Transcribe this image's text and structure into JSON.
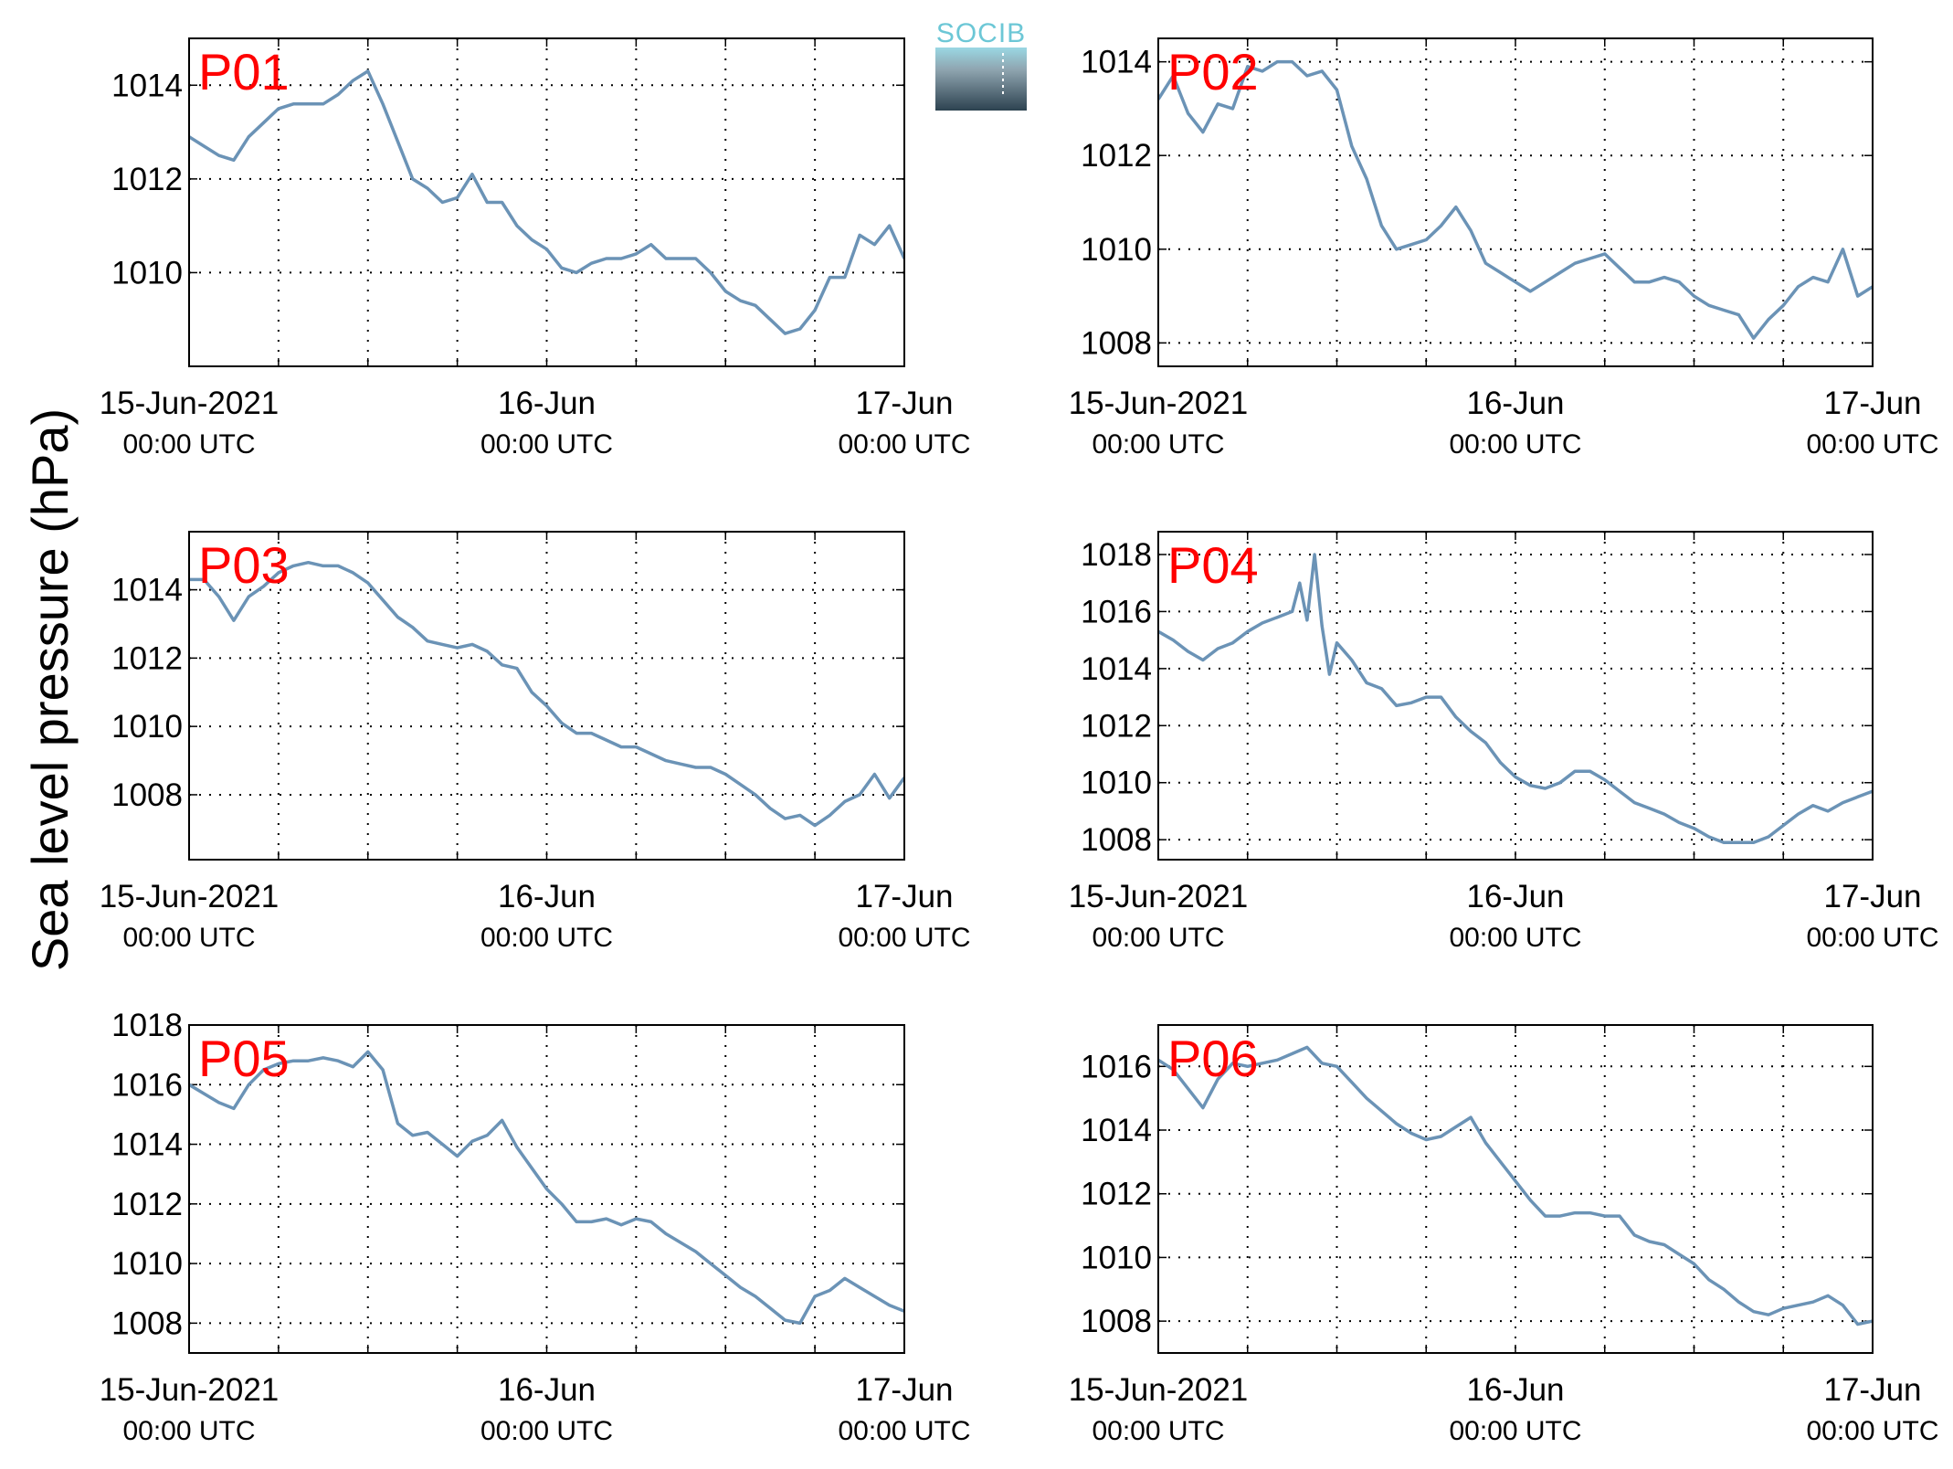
{
  "figure": {
    "ylabel": "Sea level pressure (hPa)",
    "logo_text": "SOCIB",
    "line_color": "#6b93b6",
    "panel_label_color": "#ff0000"
  },
  "chart_data": [
    {
      "type": "line",
      "label": "P01",
      "xlim": [
        0,
        48
      ],
      "ylim": [
        1008,
        1015
      ],
      "yticks": [
        1010,
        1012,
        1014
      ],
      "xticks": [
        {
          "x": 0,
          "main": "15-Jun-2021",
          "sub": "00:00 UTC"
        },
        {
          "x": 24,
          "main": "16-Jun",
          "sub": "00:00 UTC"
        },
        {
          "x": 48,
          "main": "17-Jun",
          "sub": "00:00 UTC"
        }
      ],
      "minor_xticks": [
        6,
        12,
        18,
        30,
        36,
        42
      ],
      "x": [
        0,
        1,
        2,
        3,
        4,
        5,
        6,
        7,
        8,
        9,
        10,
        11,
        12,
        13,
        14,
        15,
        16,
        17,
        18,
        19,
        20,
        21,
        22,
        23,
        24,
        25,
        26,
        27,
        28,
        29,
        30,
        31,
        32,
        33,
        34,
        35,
        36,
        37,
        38,
        39,
        40,
        41,
        42,
        43,
        44,
        45,
        46,
        47,
        48
      ],
      "y": [
        1012.9,
        1012.7,
        1012.5,
        1012.4,
        1012.9,
        1013.2,
        1013.5,
        1013.6,
        1013.6,
        1013.6,
        1013.8,
        1014.1,
        1014.3,
        1013.6,
        1012.8,
        1012.0,
        1011.8,
        1011.5,
        1011.6,
        1012.1,
        1011.5,
        1011.5,
        1011.0,
        1010.7,
        1010.5,
        1010.1,
        1010.0,
        1010.2,
        1010.3,
        1010.3,
        1010.4,
        1010.6,
        1010.3,
        1010.3,
        1010.3,
        1010.0,
        1009.6,
        1009.4,
        1009.3,
        1009.0,
        1008.7,
        1008.8,
        1009.2,
        1009.9,
        1009.9,
        1010.8,
        1010.6,
        1011.0,
        1010.3
      ]
    },
    {
      "type": "line",
      "label": "P02",
      "xlim": [
        0,
        48
      ],
      "ylim": [
        1007.5,
        1014.5
      ],
      "yticks": [
        1008,
        1010,
        1012,
        1014
      ],
      "xticks": [
        {
          "x": 0,
          "main": "15-Jun-2021",
          "sub": "00:00 UTC"
        },
        {
          "x": 24,
          "main": "16-Jun",
          "sub": "00:00 UTC"
        },
        {
          "x": 48,
          "main": "17-Jun",
          "sub": "00:00 UTC"
        }
      ],
      "minor_xticks": [
        6,
        12,
        18,
        30,
        36,
        42
      ],
      "x": [
        0,
        1,
        2,
        3,
        4,
        5,
        6,
        7,
        8,
        9,
        10,
        11,
        12,
        13,
        14,
        15,
        16,
        17,
        18,
        19,
        20,
        21,
        22,
        23,
        24,
        25,
        26,
        27,
        28,
        29,
        30,
        31,
        32,
        33,
        34,
        35,
        36,
        37,
        38,
        39,
        40,
        41,
        42,
        43,
        44,
        45,
        46,
        47,
        48
      ],
      "y": [
        1013.2,
        1013.7,
        1012.9,
        1012.5,
        1013.1,
        1013.0,
        1013.9,
        1013.8,
        1014.0,
        1014.0,
        1013.7,
        1013.8,
        1013.4,
        1012.2,
        1011.5,
        1010.5,
        1010.0,
        1010.1,
        1010.2,
        1010.5,
        1010.9,
        1010.4,
        1009.7,
        1009.5,
        1009.3,
        1009.1,
        1009.3,
        1009.5,
        1009.7,
        1009.8,
        1009.9,
        1009.6,
        1009.3,
        1009.3,
        1009.4,
        1009.3,
        1009.0,
        1008.8,
        1008.7,
        1008.6,
        1008.1,
        1008.5,
        1008.8,
        1009.2,
        1009.4,
        1009.3,
        1010.0,
        1009.0,
        1009.2
      ]
    },
    {
      "type": "line",
      "label": "P03",
      "xlim": [
        0,
        48
      ],
      "ylim": [
        1006.1,
        1015.7
      ],
      "yticks": [
        1008,
        1010,
        1012,
        1014
      ],
      "xticks": [
        {
          "x": 0,
          "main": "15-Jun-2021",
          "sub": "00:00 UTC"
        },
        {
          "x": 24,
          "main": "16-Jun",
          "sub": "00:00 UTC"
        },
        {
          "x": 48,
          "main": "17-Jun",
          "sub": "00:00 UTC"
        }
      ],
      "minor_xticks": [
        6,
        12,
        18,
        30,
        36,
        42
      ],
      "x": [
        0,
        1,
        2,
        3,
        4,
        5,
        6,
        7,
        8,
        9,
        10,
        11,
        12,
        13,
        14,
        15,
        16,
        17,
        18,
        19,
        20,
        21,
        22,
        23,
        24,
        25,
        26,
        27,
        28,
        29,
        30,
        31,
        32,
        33,
        34,
        35,
        36,
        37,
        38,
        39,
        40,
        41,
        42,
        43,
        44,
        45,
        46,
        47,
        48
      ],
      "y": [
        1014.3,
        1014.3,
        1013.8,
        1013.1,
        1013.8,
        1014.1,
        1014.5,
        1014.7,
        1014.8,
        1014.7,
        1014.7,
        1014.5,
        1014.2,
        1013.7,
        1013.2,
        1012.9,
        1012.5,
        1012.4,
        1012.3,
        1012.4,
        1012.2,
        1011.8,
        1011.7,
        1011.0,
        1010.6,
        1010.1,
        1009.8,
        1009.8,
        1009.6,
        1009.4,
        1009.4,
        1009.2,
        1009.0,
        1008.9,
        1008.8,
        1008.8,
        1008.6,
        1008.3,
        1008.0,
        1007.6,
        1007.3,
        1007.4,
        1007.1,
        1007.4,
        1007.8,
        1008.0,
        1008.6,
        1007.9,
        1008.5
      ]
    },
    {
      "type": "line",
      "label": "P04",
      "xlim": [
        0,
        48
      ],
      "ylim": [
        1007.3,
        1018.8
      ],
      "yticks": [
        1008,
        1010,
        1012,
        1014,
        1016,
        1018
      ],
      "xticks": [
        {
          "x": 0,
          "main": "15-Jun-2021",
          "sub": "00:00 UTC"
        },
        {
          "x": 24,
          "main": "16-Jun",
          "sub": "00:00 UTC"
        },
        {
          "x": 48,
          "main": "17-Jun",
          "sub": "00:00 UTC"
        }
      ],
      "minor_xticks": [
        6,
        12,
        18,
        30,
        36,
        42
      ],
      "x": [
        0,
        1,
        2,
        3,
        4,
        5,
        6,
        7,
        8,
        9,
        9.5,
        10,
        10.5,
        11,
        11.5,
        12,
        13,
        14,
        15,
        16,
        17,
        18,
        19,
        20,
        21,
        22,
        23,
        24,
        25,
        26,
        27,
        28,
        29,
        30,
        31,
        32,
        33,
        34,
        35,
        36,
        37,
        38,
        39,
        40,
        41,
        42,
        43,
        44,
        45,
        46,
        47,
        48
      ],
      "y": [
        1015.3,
        1015.0,
        1014.6,
        1014.3,
        1014.7,
        1014.9,
        1015.3,
        1015.6,
        1015.8,
        1016.0,
        1017.0,
        1015.7,
        1018.0,
        1015.5,
        1013.8,
        1014.9,
        1014.3,
        1013.5,
        1013.3,
        1012.7,
        1012.8,
        1013.0,
        1013.0,
        1012.3,
        1011.8,
        1011.4,
        1010.7,
        1010.2,
        1009.9,
        1009.8,
        1010.0,
        1010.4,
        1010.4,
        1010.1,
        1009.7,
        1009.3,
        1009.1,
        1008.9,
        1008.6,
        1008.4,
        1008.1,
        1007.9,
        1007.9,
        1007.9,
        1008.1,
        1008.5,
        1008.9,
        1009.2,
        1009.0,
        1009.3,
        1009.5,
        1009.7
      ]
    },
    {
      "type": "line",
      "label": "P05",
      "xlim": [
        0,
        48
      ],
      "ylim": [
        1007,
        1018
      ],
      "yticks": [
        1008,
        1010,
        1012,
        1014,
        1016,
        1018
      ],
      "xticks": [
        {
          "x": 0,
          "main": "15-Jun-2021",
          "sub": "00:00 UTC"
        },
        {
          "x": 24,
          "main": "16-Jun",
          "sub": "00:00 UTC"
        },
        {
          "x": 48,
          "main": "17-Jun",
          "sub": "00:00 UTC"
        }
      ],
      "minor_xticks": [
        6,
        12,
        18,
        30,
        36,
        42
      ],
      "x": [
        0,
        1,
        2,
        3,
        4,
        5,
        6,
        7,
        8,
        9,
        10,
        11,
        12,
        13,
        14,
        15,
        16,
        17,
        18,
        19,
        20,
        21,
        22,
        23,
        24,
        25,
        26,
        27,
        28,
        29,
        30,
        31,
        32,
        33,
        34,
        35,
        36,
        37,
        38,
        39,
        40,
        41,
        42,
        43,
        44,
        45,
        46,
        47,
        48
      ],
      "y": [
        1016.0,
        1015.7,
        1015.4,
        1015.2,
        1016.0,
        1016.5,
        1016.7,
        1016.8,
        1016.8,
        1016.9,
        1016.8,
        1016.6,
        1017.1,
        1016.5,
        1014.7,
        1014.3,
        1014.4,
        1014.0,
        1013.6,
        1014.1,
        1014.3,
        1014.8,
        1013.9,
        1013.2,
        1012.5,
        1012.0,
        1011.4,
        1011.4,
        1011.5,
        1011.3,
        1011.5,
        1011.4,
        1011.0,
        1010.7,
        1010.4,
        1010.0,
        1009.6,
        1009.2,
        1008.9,
        1008.5,
        1008.1,
        1008.0,
        1008.9,
        1009.1,
        1009.5,
        1009.2,
        1008.9,
        1008.6,
        1008.4
      ]
    },
    {
      "type": "line",
      "label": "P06",
      "xlim": [
        0,
        48
      ],
      "ylim": [
        1007,
        1017.3
      ],
      "yticks": [
        1008,
        1010,
        1012,
        1014,
        1016
      ],
      "xticks": [
        {
          "x": 0,
          "main": "15-Jun-2021",
          "sub": "00:00 UTC"
        },
        {
          "x": 24,
          "main": "16-Jun",
          "sub": "00:00 UTC"
        },
        {
          "x": 48,
          "main": "17-Jun",
          "sub": "00:00 UTC"
        }
      ],
      "minor_xticks": [
        6,
        12,
        18,
        30,
        36,
        42
      ],
      "x": [
        0,
        1,
        2,
        3,
        4,
        5,
        6,
        7,
        8,
        9,
        10,
        11,
        12,
        13,
        14,
        15,
        16,
        17,
        18,
        19,
        20,
        21,
        22,
        23,
        24,
        25,
        26,
        27,
        28,
        29,
        30,
        31,
        32,
        33,
        34,
        35,
        36,
        37,
        38,
        39,
        40,
        41,
        42,
        43,
        44,
        45,
        46,
        47,
        48
      ],
      "y": [
        1016.2,
        1015.9,
        1015.3,
        1014.7,
        1015.6,
        1016.1,
        1016.0,
        1016.1,
        1016.2,
        1016.4,
        1016.6,
        1016.1,
        1016.0,
        1015.5,
        1015.0,
        1014.6,
        1014.2,
        1013.9,
        1013.7,
        1013.8,
        1014.1,
        1014.4,
        1013.6,
        1013.0,
        1012.4,
        1011.8,
        1011.3,
        1011.3,
        1011.4,
        1011.4,
        1011.3,
        1011.3,
        1010.7,
        1010.5,
        1010.4,
        1010.1,
        1009.8,
        1009.3,
        1009.0,
        1008.6,
        1008.3,
        1008.2,
        1008.4,
        1008.5,
        1008.6,
        1008.8,
        1008.5,
        1007.9,
        1008.0
      ]
    }
  ]
}
